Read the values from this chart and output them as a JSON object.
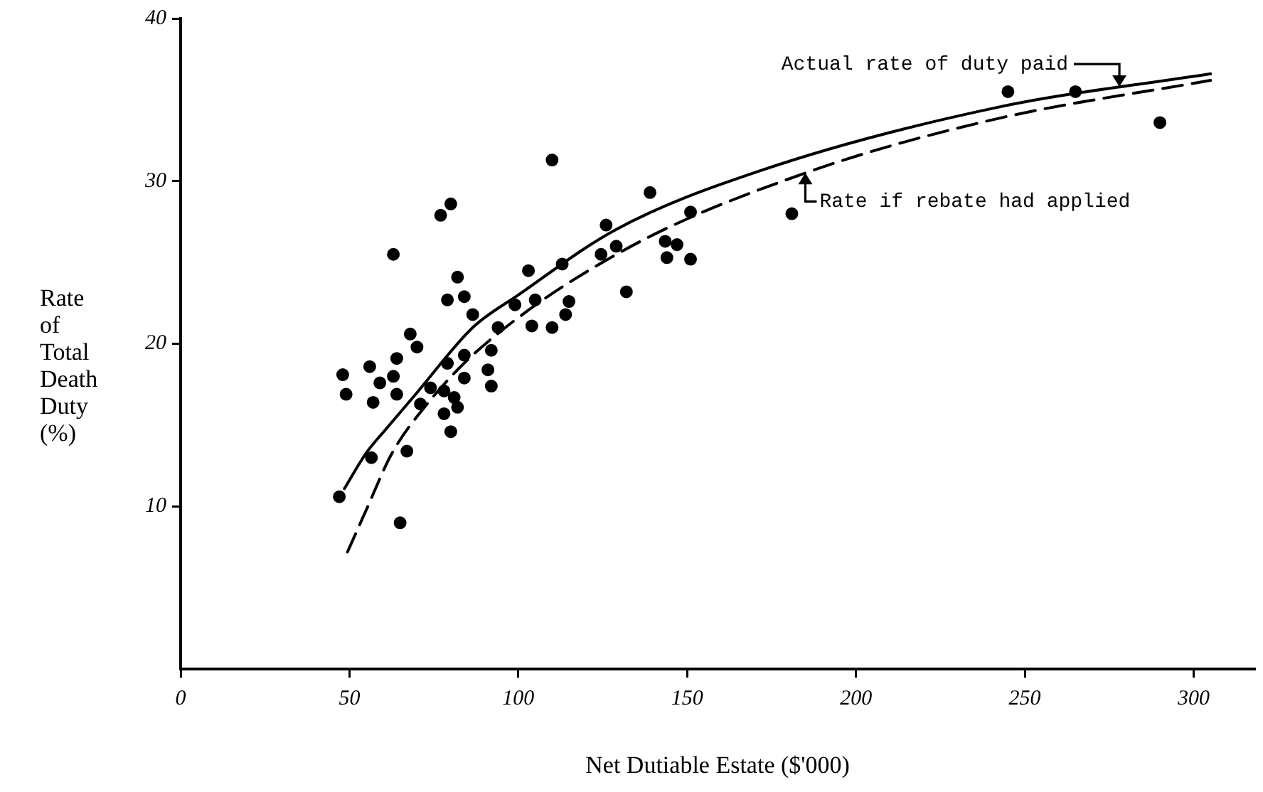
{
  "chart_data": {
    "type": "scatter",
    "xlabel": "Net Dutiable Estate ($'000)",
    "ylabel": "Rate of Total Death Duty (%)",
    "xlim": [
      0,
      318
    ],
    "ylim": [
      0,
      40
    ],
    "xticks": [
      0,
      50,
      100,
      150,
      200,
      250,
      300
    ],
    "yticks": [
      10,
      20,
      30,
      40
    ],
    "grid": false,
    "marker": "circle",
    "series": [
      {
        "type": "scatter",
        "color": "#000000",
        "x": [
          80,
          77,
          63,
          82,
          79,
          84,
          86.5,
          94,
          68,
          70,
          64,
          48,
          56,
          59,
          63,
          49,
          57,
          64,
          79,
          84,
          92,
          91,
          92,
          84,
          74,
          78,
          71,
          81,
          82,
          78,
          80,
          56.5,
          67,
          47,
          65,
          110,
          139,
          126,
          151,
          103,
          113,
          124.5,
          129,
          143.5,
          147,
          144,
          151,
          99,
          105,
          115,
          104,
          110,
          114,
          132,
          245,
          265,
          290,
          181
        ],
        "values": [
          28.6,
          27.9,
          25.5,
          24.1,
          22.7,
          22.9,
          21.8,
          21.0,
          20.6,
          19.8,
          19.1,
          18.1,
          18.6,
          17.6,
          18.0,
          16.9,
          16.4,
          16.9,
          18.8,
          19.3,
          19.6,
          18.4,
          17.4,
          17.9,
          17.3,
          17.1,
          16.3,
          16.7,
          16.1,
          15.7,
          14.6,
          13.0,
          13.4,
          10.6,
          9.0,
          31.3,
          29.3,
          27.3,
          28.1,
          24.5,
          24.9,
          25.5,
          26.0,
          26.3,
          26.1,
          25.3,
          25.2,
          22.4,
          22.7,
          22.6,
          21.1,
          21.0,
          21.8,
          23.2,
          35.5,
          35.5,
          33.6,
          28.0
        ]
      },
      {
        "type": "line",
        "color": "#000000",
        "line_style": "solid",
        "marker": "none",
        "x": [
          48.5,
          55,
          61,
          70,
          86.5,
          100,
          128.7,
          171,
          241,
          305
        ],
        "values": [
          11.1,
          13.3,
          14.8,
          17.0,
          21.0,
          23.0,
          27.0,
          30.6,
          34.5,
          36.6
        ]
      },
      {
        "type": "line",
        "color": "#000000",
        "line_style": "dashed",
        "marker": "none",
        "x": [
          49.4,
          55,
          62.4,
          72.6,
          88.6,
          130.8,
          185,
          241,
          305
        ],
        "values": [
          7.2,
          9.8,
          13.2,
          16.2,
          19.7,
          25.7,
          30.5,
          33.8,
          36.2
        ]
      }
    ],
    "annotations": [
      {
        "text": "Actual rate of duty paid",
        "x": 278,
        "y": 35.8
      },
      {
        "text": "Rate if rebate had applied",
        "x": 185,
        "y": 30.5
      }
    ]
  }
}
